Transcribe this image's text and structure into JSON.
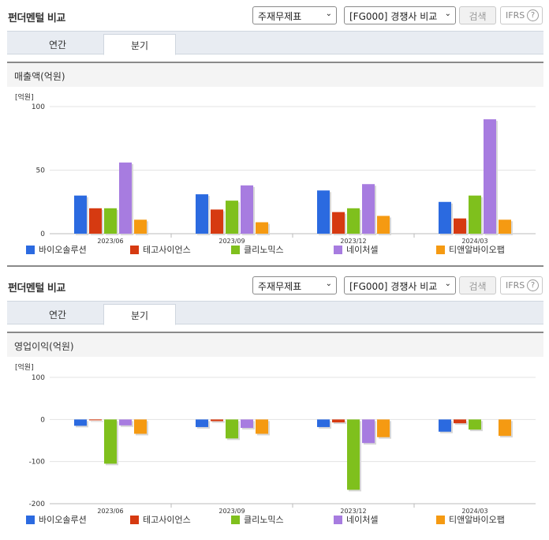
{
  "colors": {
    "바이오솔루션": "#2b6ae0",
    "테고사이언스": "#d63a11",
    "클리노믹스": "#7fc01d",
    "네이처셀": "#a77ce0",
    "티앤알바이오팹": "#f59a12"
  },
  "panels": [
    {
      "title": "펀더멘털 비교",
      "select1": "주재무제표",
      "select2": "[FG000] 경쟁사 비교",
      "search_label": "검색",
      "ifrs_label": "IFRS",
      "help_glyph": "?",
      "tabs": [
        "연간",
        "분기"
      ],
      "active_tab": "분기",
      "metric": "매출액(억원)",
      "unit": "[억원]",
      "chart_data": {
        "type": "bar",
        "categories": [
          "2023/06",
          "2023/09",
          "2023/12",
          "2024/03"
        ],
        "ylim": [
          0,
          100
        ],
        "yticks": [
          0,
          50,
          100
        ],
        "series": [
          {
            "name": "바이오솔루션",
            "values": [
              30,
              31,
              34,
              25
            ]
          },
          {
            "name": "테고사이언스",
            "values": [
              20,
              19,
              17,
              12
            ]
          },
          {
            "name": "클리노믹스",
            "values": [
              20,
              26,
              20,
              30
            ]
          },
          {
            "name": "네이처셀",
            "values": [
              56,
              38,
              39,
              90
            ]
          },
          {
            "name": "티앤알바이오팹",
            "values": [
              11,
              9,
              14,
              11
            ]
          }
        ],
        "legend": "bottom"
      }
    },
    {
      "title": "펀더멘털 비교",
      "select1": "주재무제표",
      "select2": "[FG000] 경쟁사 비교",
      "search_label": "검색",
      "ifrs_label": "IFRS",
      "help_glyph": "?",
      "tabs": [
        "연간",
        "분기"
      ],
      "active_tab": "분기",
      "metric": "영업이익(억원)",
      "unit": "[억원]",
      "chart_data": {
        "type": "bar",
        "categories": [
          "2023/06",
          "2023/09",
          "2023/12",
          "2024/03"
        ],
        "ylim": [
          -200,
          100
        ],
        "yticks": [
          -200,
          -100,
          0,
          100
        ],
        "series": [
          {
            "name": "바이오솔루션",
            "values": [
              -15,
              -18,
              -18,
              -29
            ]
          },
          {
            "name": "테고사이언스",
            "values": [
              -2,
              -4,
              -7,
              -9
            ]
          },
          {
            "name": "클리노믹스",
            "values": [
              -105,
              -45,
              -167,
              -24
            ]
          },
          {
            "name": "네이처셀",
            "values": [
              -14,
              -20,
              -56,
              0
            ]
          },
          {
            "name": "티앤알바이오팹",
            "values": [
              -34,
              -34,
              -42,
              -39
            ]
          }
        ],
        "legend": "bottom"
      }
    }
  ]
}
